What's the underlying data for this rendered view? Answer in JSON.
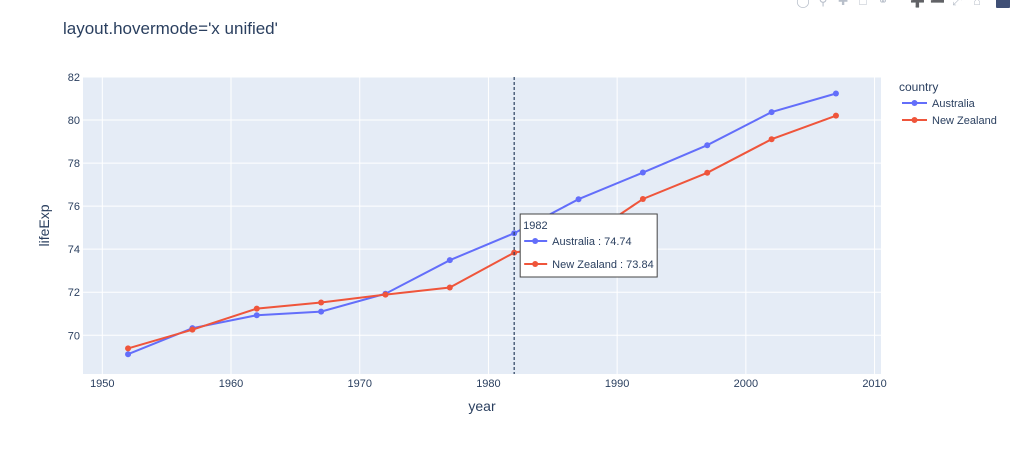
{
  "chart_data": {
    "type": "line",
    "title": "layout.hovermode='x unified'",
    "xlabel": "year",
    "ylabel": "lifeExp",
    "x": [
      1952,
      1957,
      1962,
      1967,
      1972,
      1977,
      1982,
      1987,
      1992,
      1997,
      2002,
      2007
    ],
    "xlim": [
      1948.5,
      2010.5
    ],
    "ylim": [
      68.2,
      82.0
    ],
    "xticks": [
      1950,
      1960,
      1970,
      1980,
      1990,
      2000,
      2010
    ],
    "yticks": [
      70,
      72,
      74,
      76,
      78,
      80,
      82
    ],
    "grid": true,
    "legend": {
      "title": "country",
      "placement": "right"
    },
    "series": [
      {
        "name": "Australia",
        "color": "#636efa",
        "values": [
          69.12,
          70.33,
          70.93,
          71.1,
          71.93,
          73.49,
          74.74,
          76.32,
          77.56,
          78.83,
          80.37,
          81.235
        ]
      },
      {
        "name": "New Zealand",
        "color": "#ef553b",
        "values": [
          69.39,
          70.26,
          71.24,
          71.52,
          71.89,
          72.22,
          73.84,
          74.32,
          76.33,
          77.55,
          79.11,
          80.204
        ]
      }
    ],
    "hover": {
      "x": 1982,
      "label": "1982",
      "entries": [
        "Australia : 74.74",
        "New Zealand : 73.84"
      ]
    },
    "colors": {
      "plot_bg": "#e5ecf6",
      "grid": "#ffffff",
      "text": "#2a3f5f"
    }
  },
  "modebar": {
    "icons": [
      "camera-icon",
      "zoom-icon",
      "pan-icon",
      "box-select-icon",
      "lasso-select-icon",
      "zoom-in-icon",
      "zoom-out-icon",
      "autoscale-icon",
      "reset-axes-icon",
      "plotly-logo-icon"
    ]
  }
}
